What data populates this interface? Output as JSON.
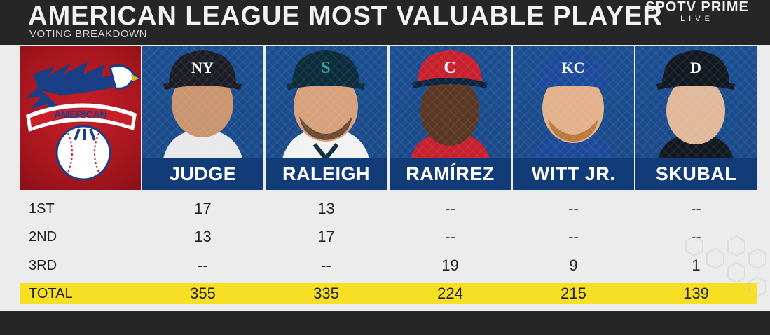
{
  "header": {
    "title": "AMERICAN LEAGUE MOST VALUABLE PLAYER",
    "subtitle": "VOTING BREAKDOWN",
    "broadcaster_name": "SPOTV PRIME",
    "broadcaster_sub": "LIVE"
  },
  "logo": {
    "text": "AMERICAN"
  },
  "players": [
    {
      "name": "JUDGE",
      "cap_logo": "NY",
      "cap_color": "#1c1c24",
      "logo_color": "#ffffff"
    },
    {
      "name": "RALEIGH",
      "cap_logo": "S",
      "cap_color": "#0c2c3c",
      "logo_color": "#2fa88f"
    },
    {
      "name": "RAMÍREZ",
      "cap_logo": "C",
      "cap_color": "#c8202d",
      "logo_color": "#ffffff"
    },
    {
      "name": "WITT JR.",
      "cap_logo": "KC",
      "cap_color": "#1c4a9a",
      "logo_color": "#ffffff"
    },
    {
      "name": "SKUBAL",
      "cap_logo": "D",
      "cap_color": "#121820",
      "logo_color": "#ffffff"
    }
  ],
  "rows": [
    {
      "label": "1ST",
      "values": [
        "17",
        "13",
        "--",
        "--",
        "--"
      ]
    },
    {
      "label": "2ND",
      "values": [
        "13",
        "17",
        "--",
        "--",
        "--"
      ]
    },
    {
      "label": "3RD",
      "values": [
        "--",
        "--",
        "19",
        "9",
        "1"
      ]
    },
    {
      "label": "TOTAL",
      "values": [
        "355",
        "335",
        "224",
        "215",
        "139"
      ]
    }
  ],
  "colors": {
    "header_bg": "#262626",
    "name_bar": "#123c78",
    "total_highlight": "#f7df24",
    "logo_red": "#b51722"
  }
}
